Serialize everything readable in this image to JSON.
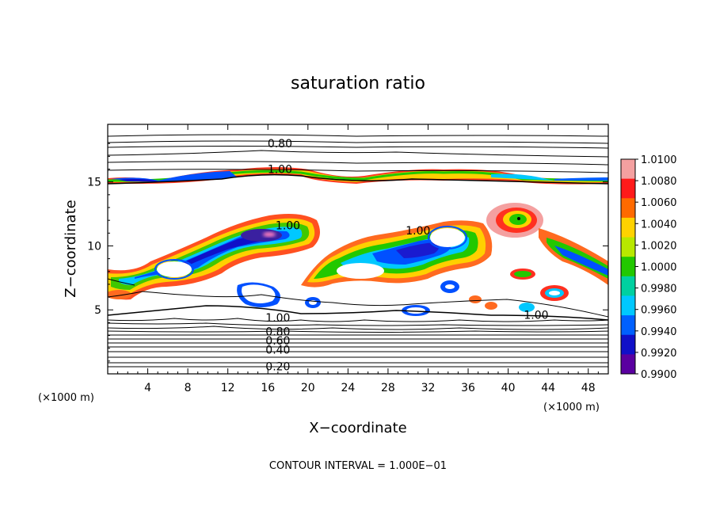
{
  "chart_data": {
    "type": "heatmap",
    "title": "saturation ratio",
    "xlabel": "X−coordinate",
    "ylabel": "Z−coordinate",
    "x_unit": "(×1000 m)",
    "y_unit": "(×1000 m)",
    "xlim": [
      0,
      50
    ],
    "ylim": [
      0,
      19.5
    ],
    "x_ticks": [
      4,
      8,
      12,
      16,
      20,
      24,
      28,
      32,
      36,
      40,
      44,
      48
    ],
    "y_ticks": [
      5,
      10,
      15
    ],
    "x_tick_labels": [
      "4",
      "8",
      "12",
      "16",
      "20",
      "24",
      "28",
      "32",
      "36",
      "40",
      "44",
      "48"
    ],
    "y_tick_labels": [
      "5",
      "10",
      "15"
    ],
    "footer": "CONTOUR INTERVAL = 1.000E−01",
    "contour_labels": [
      {
        "text": "0.80",
        "x": 17.2,
        "z": 18.0
      },
      {
        "text": "1.00",
        "x": 17.2,
        "z": 16.0
      },
      {
        "text": "1.00",
        "x": 18.0,
        "z": 11.6
      },
      {
        "text": "1.00",
        "x": 31.0,
        "z": 11.2
      },
      {
        "text": "1.00",
        "x": 17.0,
        "z": 4.4
      },
      {
        "text": "0.80",
        "x": 17.0,
        "z": 3.3
      },
      {
        "text": "0.60",
        "x": 17.0,
        "z": 2.6
      },
      {
        "text": "0.40",
        "x": 17.0,
        "z": 1.9
      },
      {
        "text": "0.20",
        "x": 17.0,
        "z": 0.6
      },
      {
        "text": "1.00",
        "x": 42.8,
        "z": 4.6
      }
    ],
    "colorbar": {
      "values": [
        "1.0100",
        "1.0080",
        "1.0060",
        "1.0040",
        "1.0020",
        "1.0000",
        "0.9980",
        "0.9960",
        "0.9940",
        "0.9920",
        "0.9900"
      ],
      "colors": [
        "#f4a0a0",
        "#ff1a1a",
        "#ff6a00",
        "#ffd200",
        "#b8e800",
        "#22c800",
        "#00d0a0",
        "#00c8ff",
        "#0060ff",
        "#1010c8",
        "#5a00a0"
      ]
    }
  }
}
